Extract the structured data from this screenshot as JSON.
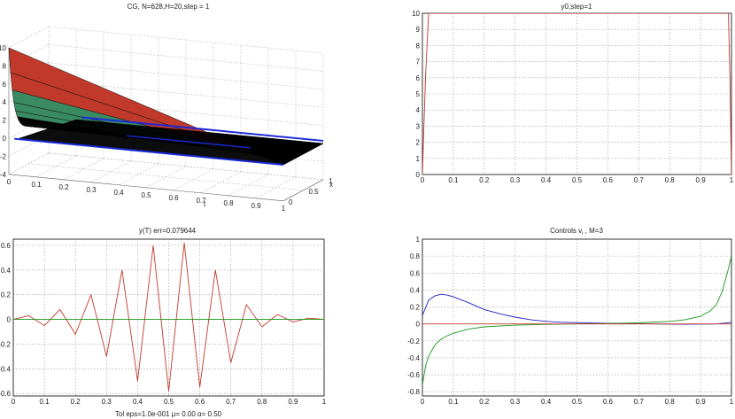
{
  "window": {
    "background": "#ffffff"
  },
  "panels": [
    {
      "id": "surface",
      "title": "CG, N=628,H=20,step = 1",
      "xlabel": "t",
      "ylabel": "x",
      "z_ticks": [
        "-4",
        "-2",
        "0",
        "2",
        "4",
        "6",
        "8",
        "10"
      ],
      "t_ticks": [
        "0",
        "0.1",
        "0.2",
        "0.3",
        "0.4",
        "0.5",
        "0.6",
        "0.7",
        "0.8",
        "0.9",
        "1"
      ],
      "x_ticks": [
        "0",
        "0.5",
        "1"
      ],
      "colors": {
        "surface": "#000000",
        "edges": "#1a28d8",
        "peak_top": "#c0392b",
        "peak_mid": "#3a8a62"
      }
    },
    {
      "id": "y0",
      "title": "y0,step=1",
      "color": "#c0392b",
      "x_ticks": [
        "0",
        "0.1",
        "0.2",
        "0.3",
        "0.4",
        "0.5",
        "0.6",
        "0.7",
        "0.8",
        "0.9",
        "1"
      ],
      "y_ticks": [
        "0",
        "1",
        "2",
        "3",
        "4",
        "5",
        "6",
        "7",
        "8",
        "9",
        "10"
      ]
    },
    {
      "id": "yT",
      "title": "y(T) err=0.079644",
      "footer": "Tol eps=1.0e-001 μ=    0.00 α=    0.50",
      "x_ticks": [
        "0",
        "0.1",
        "0.2",
        "0.3",
        "0.4",
        "0.5",
        "0.6",
        "0.7",
        "0.8",
        "0.9",
        "1"
      ],
      "y_ticks": [
        "-0.6",
        "-0.4",
        "-0.2",
        "0",
        "0.2",
        "0.4",
        "0.6"
      ],
      "colors": {
        "series_1": "#c0392b",
        "series_2": "#1a9a1a"
      }
    },
    {
      "id": "controls",
      "title": "Controls v_i , M=3",
      "title_main": "Controls v",
      "title_sub": "i",
      "title_rest": " , M=3",
      "x_ticks": [
        "0",
        "0.1",
        "0.2",
        "0.3",
        "0.4",
        "0.5",
        "0.6",
        "0.7",
        "0.8",
        "0.9",
        "1"
      ],
      "y_ticks": [
        "-0.8",
        "-0.6",
        "-0.4",
        "-0.2",
        "0",
        "0.2",
        "0.4",
        "0.6",
        "0.8",
        "1"
      ],
      "colors": {
        "series_1": "#2020c0",
        "series_2": "#1a9a1a",
        "series_3": "#c0392b"
      }
    }
  ],
  "chart_data": [
    {
      "type": "area",
      "title": "CG, N=628,H=20,step = 1",
      "xlabel": "t",
      "ylabel": "x",
      "zlim": [
        -4,
        10
      ],
      "xlim": [
        0,
        1
      ],
      "ylim": [
        0,
        1
      ],
      "grid": true,
      "peak": {
        "t": 0,
        "x": 0,
        "z": 10
      }
    },
    {
      "type": "line",
      "title": "y0,step=1",
      "xlim": [
        0,
        1
      ],
      "ylim": [
        0,
        10
      ],
      "grid": true,
      "series": [
        {
          "x": [
            0,
            0.005,
            0.01,
            0.02,
            0.03,
            0.99,
            0.995,
            1
          ],
          "y": [
            0,
            3,
            6,
            10,
            10,
            10,
            6,
            0
          ]
        }
      ]
    },
    {
      "type": "line",
      "title": "y(T) err=0.079644",
      "xlim": [
        0,
        1
      ],
      "ylim": [
        -0.62,
        0.65
      ],
      "grid": true,
      "series": [
        {
          "x": [
            0,
            0.05,
            0.1,
            0.15,
            0.2,
            0.25,
            0.3,
            0.35,
            0.4,
            0.45,
            0.5,
            0.55,
            0.6,
            0.65,
            0.7,
            0.75,
            0.8,
            0.85,
            0.9,
            0.95,
            1
          ],
          "y": [
            0,
            0.03,
            -0.05,
            0.08,
            -0.12,
            0.2,
            -0.3,
            0.4,
            -0.5,
            0.6,
            -0.58,
            0.62,
            -0.55,
            0.4,
            -0.35,
            0.12,
            -0.06,
            0.04,
            -0.02,
            0.01,
            0
          ]
        },
        {
          "x": [
            0,
            1
          ],
          "y": [
            0,
            0
          ]
        }
      ]
    },
    {
      "type": "line",
      "title": "Controls v_i , M=3",
      "xlim": [
        0,
        1
      ],
      "ylim": [
        -0.85,
        1
      ],
      "grid": true,
      "series": [
        {
          "x": [
            0,
            0.02,
            0.04,
            0.06,
            0.08,
            0.1,
            0.15,
            0.2,
            0.25,
            0.3,
            0.35,
            0.4,
            0.45,
            0.5,
            0.55,
            0.6,
            0.65,
            0.7,
            0.75,
            0.8,
            0.85,
            0.9,
            0.95,
            0.98,
            1
          ],
          "y": [
            0.1,
            0.28,
            0.33,
            0.35,
            0.34,
            0.32,
            0.25,
            0.17,
            0.12,
            0.08,
            0.05,
            0.03,
            0.02,
            0.015,
            0.01,
            0.008,
            0.005,
            0.003,
            0.0,
            -0.002,
            -0.003,
            -0.002,
            0.0,
            0.01,
            0.02
          ]
        },
        {
          "x": [
            0,
            0.01,
            0.02,
            0.04,
            0.06,
            0.08,
            0.1,
            0.15,
            0.2,
            0.3,
            0.4,
            0.5,
            0.6,
            0.7,
            0.8,
            0.85,
            0.9,
            0.93,
            0.95,
            0.97,
            0.99,
            1
          ],
          "y": [
            -0.72,
            -0.5,
            -0.38,
            -0.25,
            -0.18,
            -0.14,
            -0.11,
            -0.06,
            -0.035,
            -0.015,
            -0.005,
            0.0,
            0.005,
            0.012,
            0.03,
            0.05,
            0.09,
            0.15,
            0.22,
            0.38,
            0.65,
            0.8
          ]
        },
        {
          "x": [
            0,
            1
          ],
          "y": [
            0,
            0
          ]
        }
      ]
    }
  ]
}
